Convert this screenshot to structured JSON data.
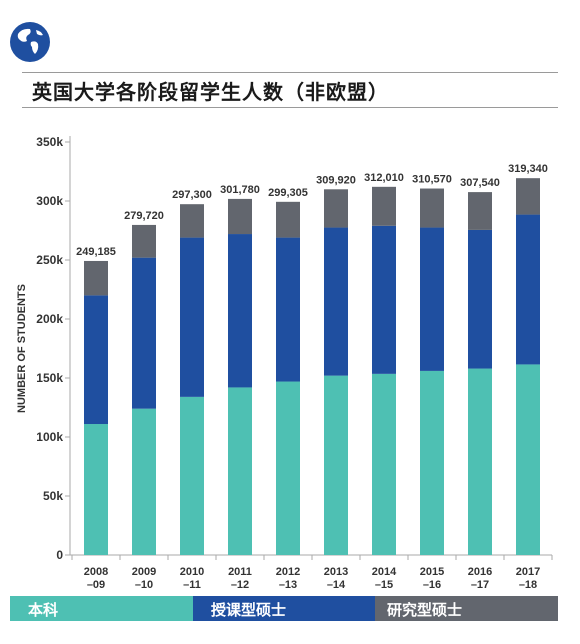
{
  "header": {
    "icon": "globe-icon"
  },
  "title": "英国大学各阶段留学生人数（非欧盟）",
  "colors": {
    "undergraduate": "#4ec0b3",
    "taught_postgrad": "#1f4fa0",
    "research_postgrad": "#62666e",
    "axis": "#aaaaaa",
    "text": "#333333"
  },
  "chart_data": {
    "type": "bar",
    "stacked": true,
    "ylabel": "NUMBER OF STUDENTS",
    "ylim": [
      0,
      350000
    ],
    "yticks": [
      {
        "value": 0,
        "label": "0"
      },
      {
        "value": 50000,
        "label": "50k"
      },
      {
        "value": 100000,
        "label": "100k"
      },
      {
        "value": 150000,
        "label": "150k"
      },
      {
        "value": 200000,
        "label": "200k"
      },
      {
        "value": 250000,
        "label": "250k"
      },
      {
        "value": 300000,
        "label": "300k"
      },
      {
        "value": 350000,
        "label": "350k"
      }
    ],
    "categories": [
      "2008\n–09",
      "2009\n–10",
      "2010\n–11",
      "2011\n–12",
      "2012\n–13",
      "2013\n–14",
      "2014\n–15",
      "2015\n–16",
      "2016\n–17",
      "2017\n–18"
    ],
    "totals": [
      249185,
      279720,
      297300,
      301780,
      299305,
      309920,
      312010,
      310570,
      307540,
      319340
    ],
    "total_labels": [
      "249,185",
      "279,720",
      "297,300",
      "301,780",
      "299,305",
      "309,920",
      "312,010",
      "310,570",
      "307,540",
      "319,340"
    ],
    "series": [
      {
        "name": "本科",
        "values": [
          111000,
          124000,
          134000,
          142000,
          147000,
          152000,
          153500,
          156000,
          158000,
          161500
        ]
      },
      {
        "name": "授课型硕士",
        "values": [
          109000,
          128000,
          135000,
          130000,
          122000,
          125500,
          125500,
          121500,
          117500,
          127000
        ]
      },
      {
        "name": "研究型硕士",
        "values": [
          29185,
          27720,
          28300,
          29780,
          30305,
          32420,
          33010,
          33070,
          32040,
          30840
        ]
      }
    ],
    "legend_position": "bottom"
  }
}
